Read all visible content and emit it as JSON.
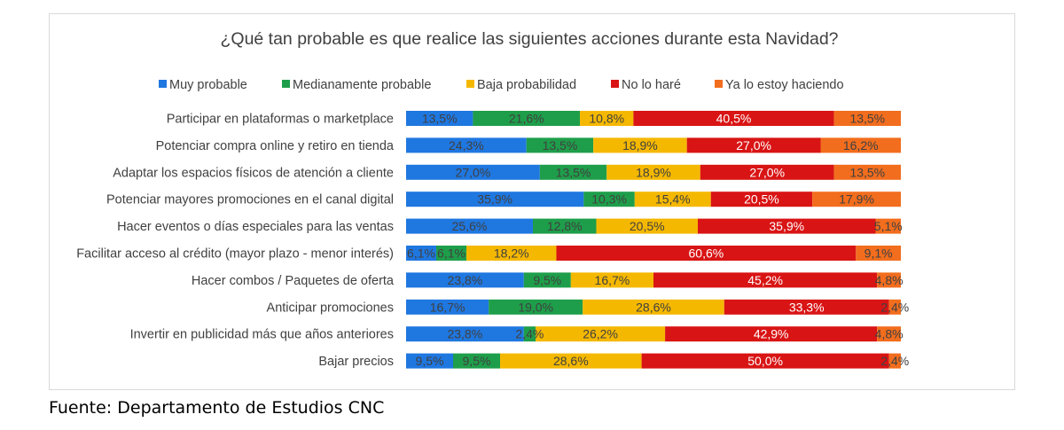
{
  "chart_data": {
    "type": "bar",
    "stacked": true,
    "orientation": "horizontal",
    "percent_stacked": true,
    "title": "¿Qué tan probable es que realice las siguientes acciones durante esta Navidad?",
    "legend_position": "top",
    "grid": false,
    "xlim": [
      0,
      100
    ],
    "categories": [
      "Participar en plataformas o marketplace",
      "Potenciar compra online y retiro en tienda",
      "Adaptar los espacios físicos de atención a cliente",
      "Potenciar mayores promociones en el canal digital",
      "Hacer eventos o días especiales para las ventas",
      "Facilitar acceso al crédito (mayor plazo - menor interés)",
      "Hacer combos / Paquetes de oferta",
      "Anticipar promociones",
      "Invertir en publicidad más que años anteriores",
      "Bajar precios"
    ],
    "series": [
      {
        "name": "Muy probable",
        "color": "#1f77e0",
        "values": [
          13.5,
          24.3,
          27.0,
          35.9,
          25.6,
          6.1,
          23.8,
          16.7,
          23.8,
          9.5
        ],
        "labels": [
          "13,5%",
          "24,3%",
          "27,0%",
          "35,9%",
          "25,6%",
          "6,1%",
          "23,8%",
          "16,7%",
          "23,8%",
          "9,5%"
        ]
      },
      {
        "name": "Medianamente probable",
        "color": "#1e9e4a",
        "values": [
          21.6,
          13.5,
          13.5,
          10.3,
          12.8,
          6.1,
          9.5,
          19.0,
          2.4,
          9.5
        ],
        "labels": [
          "21,6%",
          "13,5%",
          "13,5%",
          "10,3%",
          "12,8%",
          "6,1%",
          "9,5%",
          "19,0%",
          "2,4%",
          "9,5%"
        ]
      },
      {
        "name": "Baja probabilidad",
        "color": "#f5b800",
        "values": [
          10.8,
          18.9,
          18.9,
          15.4,
          20.5,
          18.2,
          16.7,
          28.6,
          26.2,
          28.6
        ],
        "labels": [
          "10,8%",
          "18,9%",
          "18,9%",
          "15,4%",
          "20,5%",
          "18,2%",
          "16,7%",
          "28,6%",
          "26,2%",
          "28,6%"
        ]
      },
      {
        "name": "No lo haré",
        "color": "#d91414",
        "values": [
          40.5,
          27.0,
          27.0,
          20.5,
          35.9,
          60.6,
          45.2,
          33.3,
          42.9,
          50.0
        ],
        "labels": [
          "40,5%",
          "27,0%",
          "27,0%",
          "20,5%",
          "35,9%",
          "60,6%",
          "45,2%",
          "33,3%",
          "42,9%",
          "50,0%"
        ]
      },
      {
        "name": "Ya lo estoy haciendo",
        "color": "#f26d1d",
        "values": [
          13.5,
          16.2,
          13.5,
          17.9,
          5.1,
          9.1,
          4.8,
          2.4,
          4.8,
          2.4
        ],
        "labels": [
          "13,5%",
          "16,2%",
          "13,5%",
          "17,9%",
          "5,1%",
          "9,1%",
          "4,8%",
          "2,4%",
          "4,8%",
          "2,4%"
        ]
      }
    ]
  },
  "source_note": "Fuente: Departamento de Estudios CNC"
}
